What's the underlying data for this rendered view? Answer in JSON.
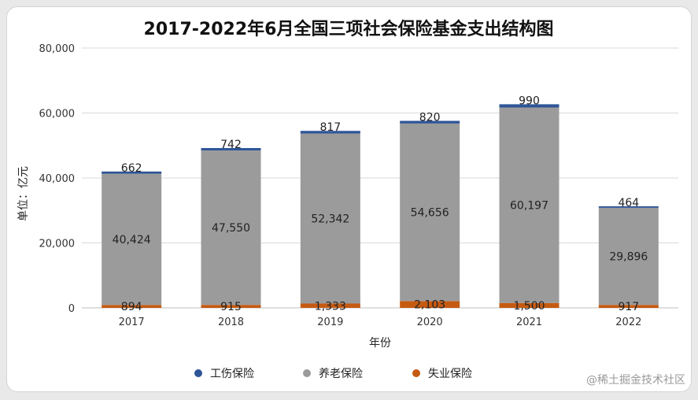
{
  "chart_data": {
    "type": "bar",
    "stacked": true,
    "title": "2017-2022年6月全国三项社会保险基金支出结构图",
    "xlabel": "年份",
    "ylabel": "单位：亿元",
    "ylim": [
      0,
      80000
    ],
    "yticks": [
      "0",
      "20,000",
      "40,000",
      "60,000",
      "80,000"
    ],
    "grid": true,
    "legend_position": "bottom",
    "categories": [
      "2017",
      "2018",
      "2019",
      "2020",
      "2021",
      "2022"
    ],
    "series": [
      {
        "name": "失业保险",
        "color": "#c55a11",
        "values": [
          894,
          915,
          1333,
          2103,
          1500,
          917
        ],
        "labels": [
          "894",
          "915",
          "1,333",
          "2,103",
          "1,500",
          "917"
        ]
      },
      {
        "name": "养老保险",
        "color": "#9b9b9b",
        "values": [
          40424,
          47550,
          52342,
          54656,
          60197,
          29896
        ],
        "labels": [
          "40,424",
          "47,550",
          "52,342",
          "54,656",
          "60,197",
          "29,896"
        ]
      },
      {
        "name": "工伤保险",
        "color": "#2e5597",
        "values": [
          662,
          742,
          817,
          820,
          990,
          464
        ],
        "labels": [
          "662",
          "742",
          "817",
          "820",
          "990",
          "464"
        ]
      }
    ],
    "legend_order": [
      "工伤保险",
      "养老保险",
      "失业保险"
    ]
  },
  "watermark": "@稀土掘金技术社区"
}
